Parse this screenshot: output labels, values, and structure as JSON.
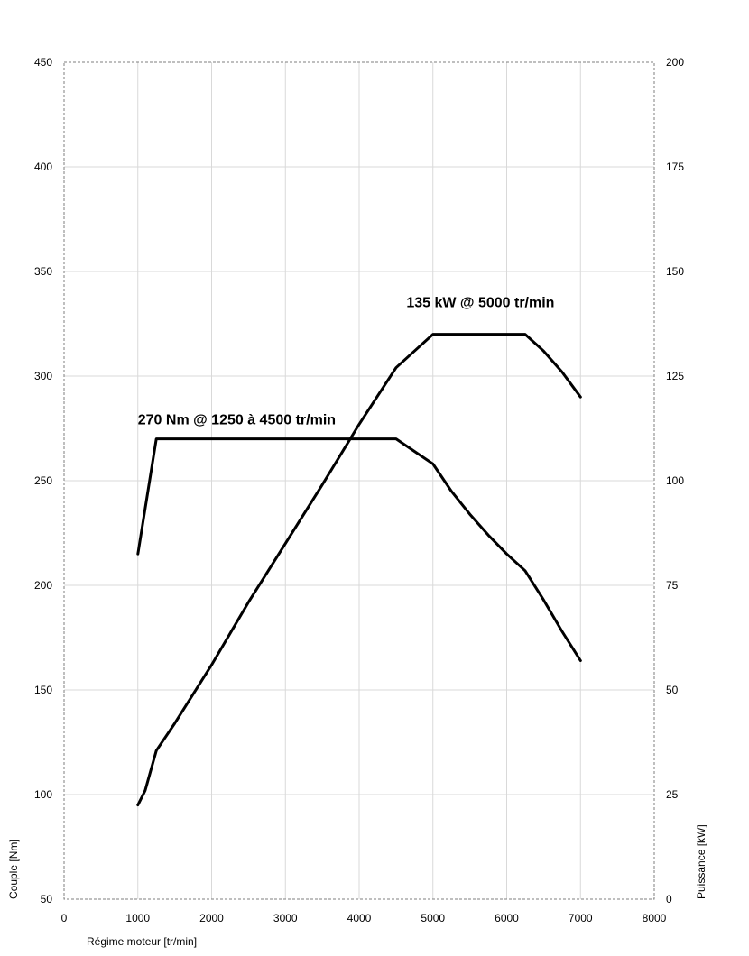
{
  "chart_data": {
    "type": "line",
    "title": "",
    "xlabel": "Régime moteur [tr/min]",
    "ylabel": "Couple [Nm]",
    "y2label": "Puissance [kW]",
    "xlim": [
      0,
      8000
    ],
    "ylim": [
      50,
      450
    ],
    "y2lim": [
      0,
      200
    ],
    "xticks": [
      0,
      1000,
      2000,
      3000,
      4000,
      5000,
      6000,
      7000,
      8000
    ],
    "yticks": [
      50,
      100,
      150,
      200,
      250,
      300,
      350,
      400,
      450
    ],
    "y2ticks": [
      0,
      25,
      50,
      75,
      100,
      125,
      150,
      175,
      200
    ],
    "grid": true,
    "line_color": "#000000",
    "grid_color": "#d9d9d9",
    "series": [
      {
        "axis": "left",
        "x": [
          1000,
          1250,
          4500,
          4750,
          5000,
          5250,
          5500,
          5750,
          6000,
          6250,
          6500,
          6750,
          7000
        ],
        "y": [
          215,
          270,
          270,
          264,
          258,
          245,
          234,
          224,
          215,
          207,
          193,
          178,
          164
        ]
      },
      {
        "axis": "right",
        "x": [
          1000,
          1100,
          1250,
          1500,
          2000,
          2500,
          3000,
          3500,
          4000,
          4500,
          4750,
          5000,
          5500,
          6000,
          6250,
          6500,
          6750,
          7000
        ],
        "y": [
          22.5,
          26,
          35.5,
          42,
          56,
          71,
          85,
          99,
          113.5,
          127,
          131,
          135,
          135,
          135,
          135,
          131,
          126,
          120
        ]
      }
    ],
    "annotations": [
      {
        "text": "270 Nm @ 1250 à 4500 tr/min",
        "x": 1000,
        "y": 277,
        "axis": "left"
      },
      {
        "text": "135 kW @ 5000 tr/min",
        "x": 4640,
        "y": 141.5,
        "axis": "right"
      }
    ]
  }
}
